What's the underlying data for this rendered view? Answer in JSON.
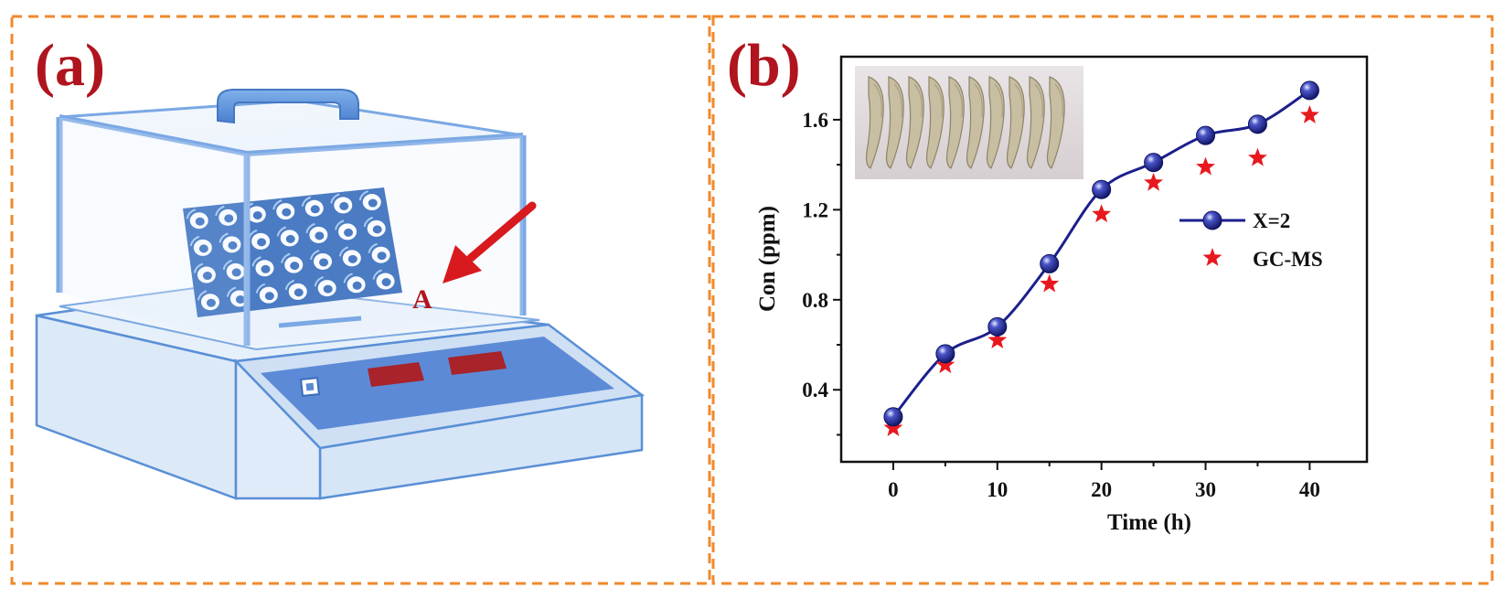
{
  "panel_a": {
    "label": "(a)",
    "marker": "A"
  },
  "panel_b": {
    "label": "(b)"
  },
  "colors": {
    "frame": "#f08a2c",
    "panel_label": "#b0141e",
    "device_body": "#dce9f7",
    "device_edge": "#5a8fd6",
    "display": "#5c8ad6",
    "led": "#a8232a",
    "sensor_array": "#1f5cb4",
    "arrow": "#d8191e",
    "series_line": "#1c1f8c",
    "gcms_marker": "#e8191e"
  },
  "chart_data": {
    "type": "scatter",
    "xlabel": "Time (h)",
    "ylabel": "Con (ppm)",
    "x_ticks": [
      0,
      10,
      20,
      30,
      40
    ],
    "y_ticks": [
      0.4,
      0.8,
      1.2,
      1.6
    ],
    "xlim": [
      -5,
      45.5
    ],
    "ylim": [
      0.08,
      1.88
    ],
    "legend_position": "right",
    "inset_image": "shrimp-photo",
    "series": [
      {
        "name": "X=2",
        "style": "line-with-spheres",
        "x": [
          0,
          5,
          10,
          15,
          20,
          25,
          30,
          35,
          40
        ],
        "y": [
          0.28,
          0.56,
          0.68,
          0.96,
          1.29,
          1.41,
          1.53,
          1.58,
          1.73
        ]
      },
      {
        "name": "GC-MS",
        "style": "stars",
        "x": [
          0,
          5,
          10,
          15,
          20,
          25,
          30,
          35,
          40
        ],
        "y": [
          0.23,
          0.51,
          0.62,
          0.87,
          1.18,
          1.32,
          1.39,
          1.43,
          1.62
        ]
      }
    ]
  }
}
